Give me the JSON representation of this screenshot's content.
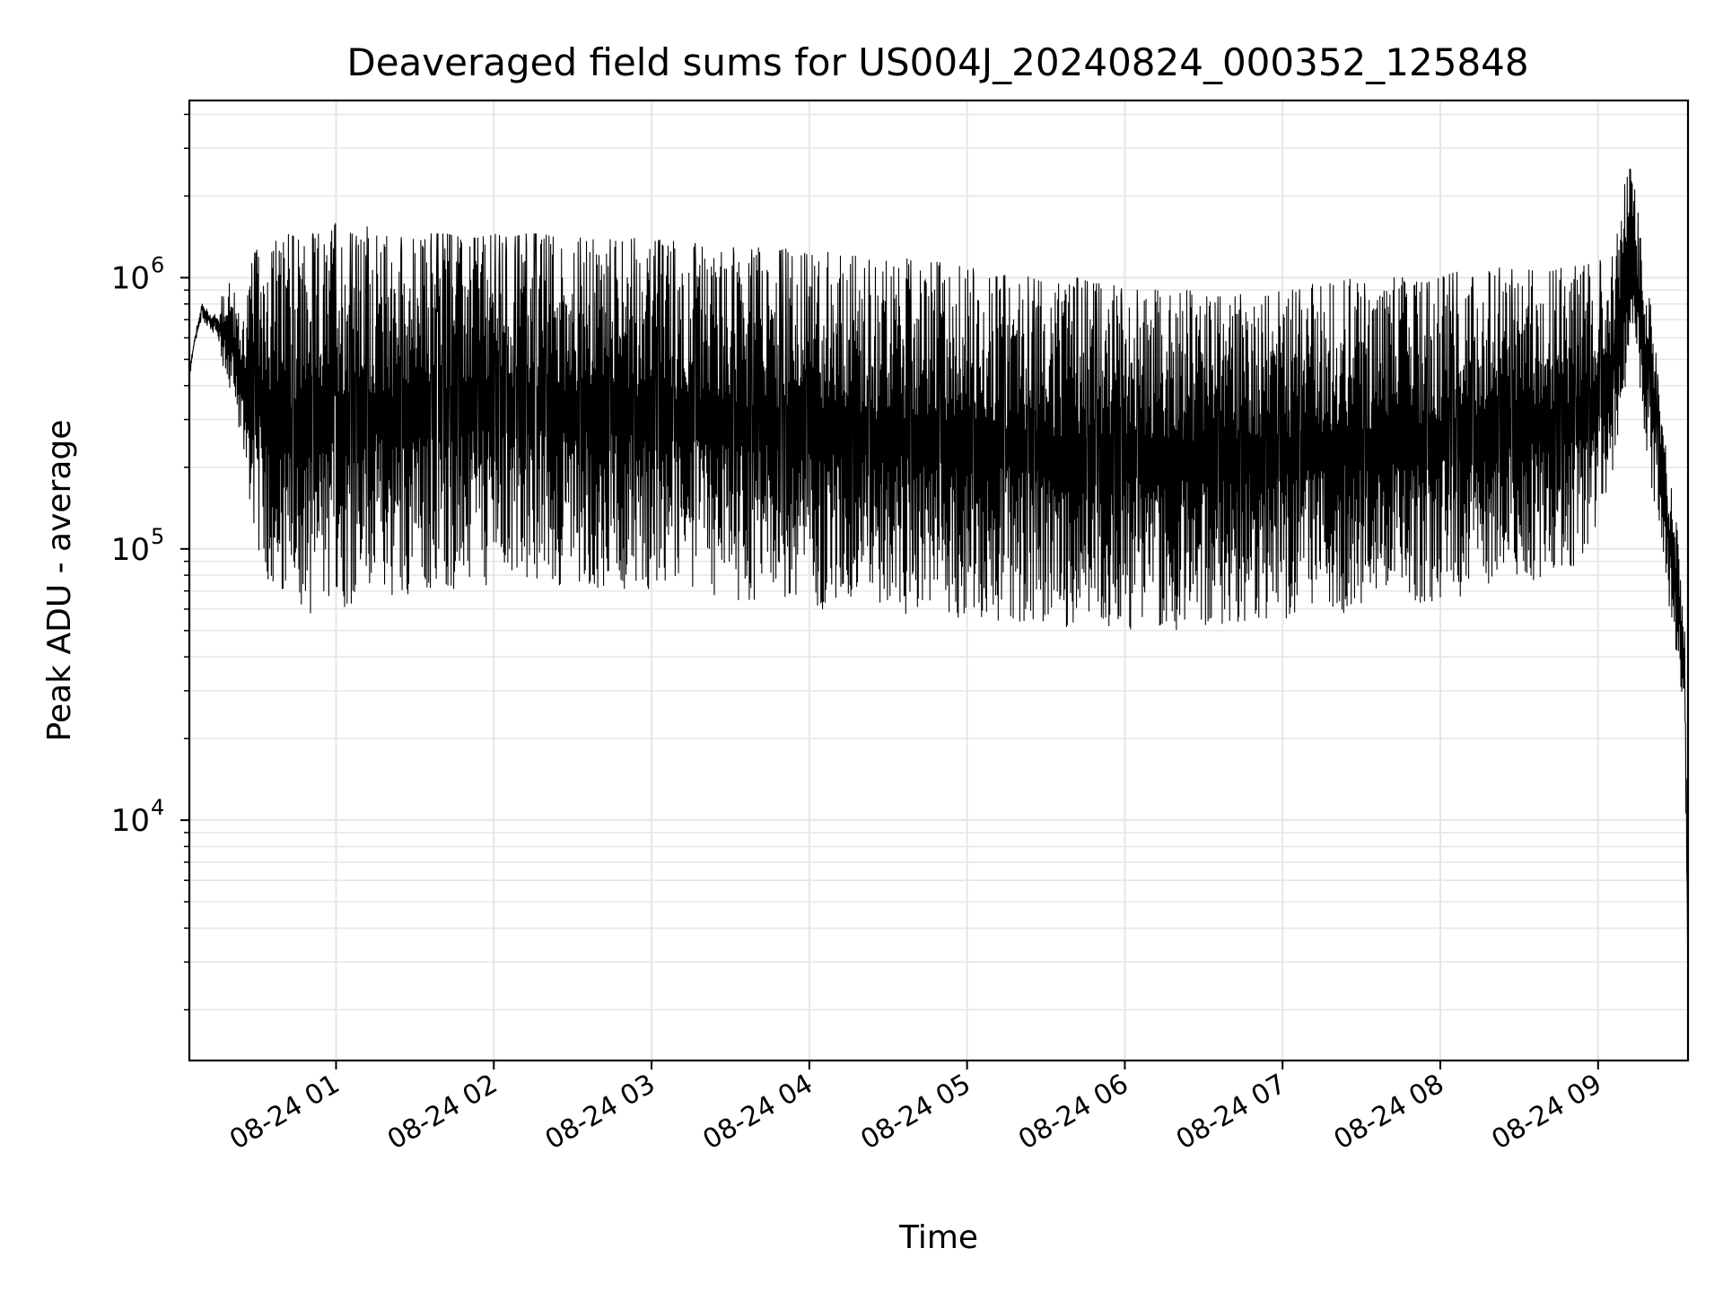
{
  "chart_data": {
    "type": "line",
    "title": "Deaveraged field sums for US004J_20240824_000352_125848",
    "xlabel": "Time",
    "ylabel": "Peak ADU - average",
    "yscale": "log",
    "ylim": [
      1300,
      4500000
    ],
    "xlim_hours": [
      0.07,
      9.57
    ],
    "x_ticks": [
      {
        "hour": 1,
        "label": "08-24 01"
      },
      {
        "hour": 2,
        "label": "08-24 02"
      },
      {
        "hour": 3,
        "label": "08-24 03"
      },
      {
        "hour": 4,
        "label": "08-24 04"
      },
      {
        "hour": 5,
        "label": "08-24 05"
      },
      {
        "hour": 6,
        "label": "08-24 06"
      },
      {
        "hour": 7,
        "label": "08-24 07"
      },
      {
        "hour": 8,
        "label": "08-24 08"
      },
      {
        "hour": 9,
        "label": "08-24 09"
      }
    ],
    "y_ticks": [
      {
        "value": 10000,
        "base": "10",
        "exp": "4"
      },
      {
        "value": 100000,
        "base": "10",
        "exp": "5"
      },
      {
        "value": 1000000,
        "base": "10",
        "exp": "6"
      }
    ],
    "grid": true,
    "line_color": "#000000",
    "grid_color": "#e6e6e6",
    "series": [
      {
        "x_hours": [
          0.07,
          0.1,
          0.15,
          0.2,
          0.25,
          0.3,
          0.35,
          0.4,
          0.45,
          0.5,
          0.55,
          0.6,
          0.65,
          0.7,
          0.75,
          0.8,
          0.85,
          0.9,
          0.95,
          1.0,
          1.05,
          1.1,
          1.15,
          1.2,
          1.25,
          1.3,
          1.35,
          1.4,
          1.5,
          1.6,
          1.7,
          1.8,
          1.9,
          2.0,
          2.1,
          2.2,
          2.3,
          2.4,
          2.5,
          2.6,
          2.7,
          2.8,
          2.9,
          3.0,
          3.1,
          3.2,
          3.3,
          3.4,
          3.5,
          3.6,
          3.7,
          3.8,
          3.9,
          4.0,
          4.1,
          4.2,
          4.3,
          4.4,
          4.5,
          4.6,
          4.7,
          4.8,
          4.9,
          5.0,
          5.1,
          5.2,
          5.3,
          5.4,
          5.5,
          5.6,
          5.7,
          5.8,
          5.9,
          6.0,
          6.1,
          6.2,
          6.3,
          6.4,
          6.5,
          6.6,
          6.7,
          6.8,
          6.9,
          7.0,
          7.1,
          7.2,
          7.3,
          7.4,
          7.5,
          7.6,
          7.7,
          7.8,
          7.9,
          8.0,
          8.1,
          8.2,
          8.3,
          8.4,
          8.5,
          8.6,
          8.7,
          8.8,
          8.9,
          9.0,
          9.1,
          9.2,
          9.25,
          9.3,
          9.35,
          9.4,
          9.45,
          9.5,
          9.55,
          9.57
        ],
        "upper": [
          450000,
          600000,
          800000,
          750000,
          720000,
          1000000,
          900000,
          700000,
          1100000,
          1300000,
          1500000,
          1400000,
          1300000,
          1450000,
          1400000,
          1300000,
          1450000,
          1500000,
          1400000,
          1600000,
          1500000,
          1450000,
          1400000,
          1550000,
          1500000,
          1400000,
          1450000,
          1400000,
          1450000,
          1450000,
          1450000,
          1400000,
          1400000,
          1450000,
          1400000,
          1450000,
          1450000,
          1400000,
          1400000,
          1400000,
          1400000,
          1350000,
          1400000,
          1350000,
          1400000,
          1300000,
          1350000,
          1300000,
          1300000,
          1250000,
          1300000,
          1250000,
          1300000,
          1200000,
          1250000,
          1200000,
          1200000,
          1150000,
          1150000,
          1200000,
          1100000,
          1150000,
          1100000,
          1100000,
          1050000,
          1000000,
          1050000,
          1000000,
          950000,
          950000,
          1000000,
          950000,
          950000,
          900000,
          900000,
          900000,
          850000,
          900000,
          850000,
          850000,
          850000,
          900000,
          850000,
          900000,
          900000,
          950000,
          950000,
          1000000,
          950000,
          950000,
          1000000,
          1000000,
          950000,
          1000000,
          1050000,
          1000000,
          1050000,
          1100000,
          1050000,
          1100000,
          1050000,
          1100000,
          1100000,
          1150000,
          1200000,
          2900000,
          1800000,
          1000000,
          700000,
          300000,
          200000,
          120000,
          60000,
          3000
        ],
        "lower": [
          420000,
          550000,
          700000,
          650000,
          600000,
          400000,
          350000,
          250000,
          150000,
          100000,
          80000,
          70000,
          60000,
          55000,
          52000,
          55000,
          58000,
          60000,
          60000,
          62000,
          60000,
          62000,
          65000,
          62000,
          65000,
          68000,
          65000,
          68000,
          68000,
          70000,
          70000,
          70000,
          72000,
          72000,
          72000,
          72000,
          75000,
          72000,
          75000,
          72000,
          72000,
          72000,
          70000,
          70000,
          68000,
          68000,
          65000,
          65000,
          65000,
          62000,
          62000,
          62000,
          60000,
          60000,
          60000,
          58000,
          58000,
          58000,
          56000,
          56000,
          55000,
          55000,
          55000,
          55000,
          55000,
          54000,
          54000,
          54000,
          52000,
          52000,
          50000,
          50000,
          50000,
          50000,
          50000,
          50000,
          50000,
          50000,
          52000,
          52000,
          52000,
          55000,
          55000,
          55000,
          55000,
          55000,
          58000,
          58000,
          60000,
          60000,
          60000,
          62000,
          62000,
          65000,
          65000,
          68000,
          70000,
          70000,
          72000,
          75000,
          78000,
          80000,
          90000,
          120000,
          200000,
          500000,
          400000,
          250000,
          150000,
          100000,
          60000,
          40000,
          20000,
          2500
        ]
      }
    ]
  }
}
